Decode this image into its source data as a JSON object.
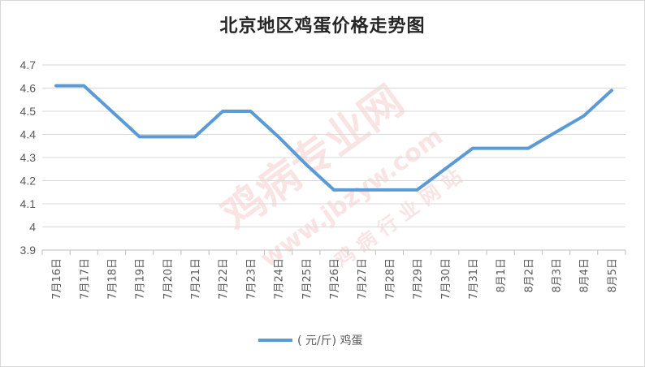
{
  "chart_data": {
    "type": "line",
    "title": "北京地区鸡蛋价格走势图",
    "categories": [
      "7月16日",
      "7月17日",
      "7月18日",
      "7月19日",
      "7月20日",
      "7月21日",
      "7月22日",
      "7月23日",
      "7月24日",
      "7月25日",
      "7月26日",
      "7月27日",
      "7月28日",
      "7月29日",
      "7月30日",
      "7月31日",
      "8月1日",
      "8月2日",
      "8月3日",
      "8月4日",
      "8月5日"
    ],
    "series": [
      {
        "name": "( 元/斤)  鸡蛋",
        "values": [
          4.61,
          4.61,
          4.5,
          4.39,
          4.39,
          4.39,
          4.5,
          4.5,
          4.39,
          4.27,
          4.16,
          4.16,
          4.16,
          4.16,
          4.25,
          4.34,
          4.34,
          4.34,
          4.41,
          4.48,
          4.59
        ],
        "color": "#5b9bd5"
      }
    ],
    "ylim": [
      3.9,
      4.7
    ],
    "yticks": [
      "4.7",
      "4.6",
      "4.5",
      "4.4",
      "4.3",
      "4.2",
      "4.1",
      "4",
      "3.9"
    ],
    "grid": true,
    "legend": "bottom"
  },
  "watermark": {
    "text": "鸡病专业网",
    "url": "www.jbzyw.com",
    "subtitle": "鸡 病 行 业 网 站"
  }
}
